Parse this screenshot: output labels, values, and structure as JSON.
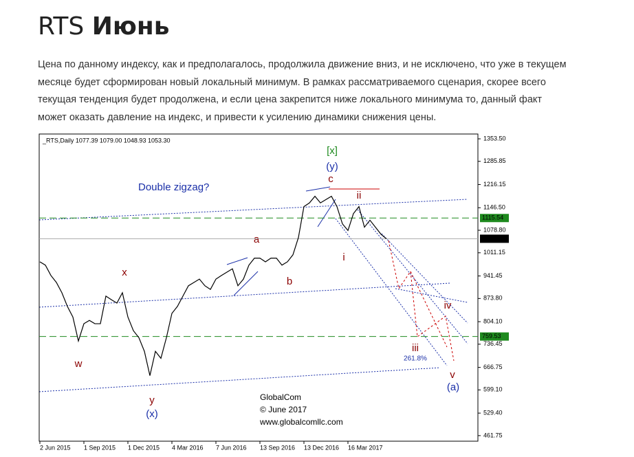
{
  "page": {
    "title_plain": "RTS",
    "title_bold": "Июнь",
    "paragraph": [
      "Цена по данному индексу, как и предполагалось, продолжила движение вниз, и не исключено, что уже в текущем",
      "месяце будет сформирован новый локальный минимум. В рамках рассматриваемого сценария, скорее всего",
      "текущая тенденция будет продолжена, и если цена закрепится ниже локального минимума то, данный факт",
      "может оказать давление на индекс, и привести к усилению динамики снижения цены."
    ]
  },
  "chart_data": {
    "type": "line",
    "info": "_RTS,Daily  1077.39 1079.00 1048.93 1053.30",
    "color": "#000000",
    "categories": [
      "2 Jun 2015",
      null,
      null,
      null,
      null,
      null,
      null,
      null,
      "1 Sep 2015",
      null,
      null,
      null,
      null,
      null,
      null,
      null,
      "1 Dec 2015",
      null,
      null,
      null,
      null,
      null,
      null,
      null,
      "4 Mar 2016",
      null,
      null,
      null,
      null,
      null,
      null,
      null,
      "7 Jun 2016",
      null,
      null,
      null,
      null,
      null,
      null,
      null,
      "13 Sep 2016",
      null,
      null,
      null,
      null,
      null,
      null,
      null,
      "13 Dec 2016",
      null,
      null,
      null,
      null,
      null,
      null,
      null,
      "16 Mar 2017",
      null,
      null,
      null,
      null,
      null,
      null,
      null
    ],
    "values": [
      984,
      974,
      943,
      922,
      891,
      850,
      818,
      746,
      798,
      808,
      798,
      798,
      881,
      870,
      860,
      891,
      818,
      777,
      756,
      715,
      642,
      715,
      694,
      756,
      829,
      850,
      881,
      912,
      922,
      932,
      912,
      901,
      932,
      943,
      953,
      963,
      912,
      932,
      974,
      995,
      995,
      984,
      995,
      995,
      974,
      984,
      1005,
      1057,
      1150,
      1161,
      1181,
      1161,
      1171,
      1181,
      1150,
      1098,
      1078,
      1129,
      1150,
      1088,
      1109,
      1088,
      1067,
      1053
    ],
    "ylim": [
      445,
      1368
    ],
    "yticks": [
      {
        "value": 1353.5,
        "label": "1353.50"
      },
      1285.85,
      1216.15,
      {
        "value": 1146.5,
        "label": "1146.50"
      },
      {
        "value": 1078.8,
        "label": "1078.80"
      },
      1011.15,
      941.45,
      {
        "value": 873.8,
        "label": "873.80"
      },
      {
        "value": 804.1,
        "label": "804.10"
      },
      736.45,
      666.75,
      {
        "value": 599.1,
        "label": "599.10"
      },
      {
        "value": 529.4,
        "label": "529.40"
      },
      461.75
    ],
    "levels": [
      {
        "value": 1115.54,
        "color": "#1e8a1e",
        "label": "1115.54"
      },
      {
        "value": 1053.3,
        "color": "#000000",
        "label": "1053.30"
      },
      {
        "value": 759.53,
        "color": "#1e8a1e",
        "label": "759.53"
      }
    ],
    "annotations": [
      "[x]",
      "(y)",
      "c",
      "Double zigzag?",
      "a",
      "b",
      "x",
      "w",
      "y",
      "(x)",
      "i",
      "ii",
      "iii",
      "iv",
      "v",
      "(a)",
      "261.8%",
      "GlobalCom",
      "© June 2017",
      "www.globalcomllc.com"
    ]
  }
}
